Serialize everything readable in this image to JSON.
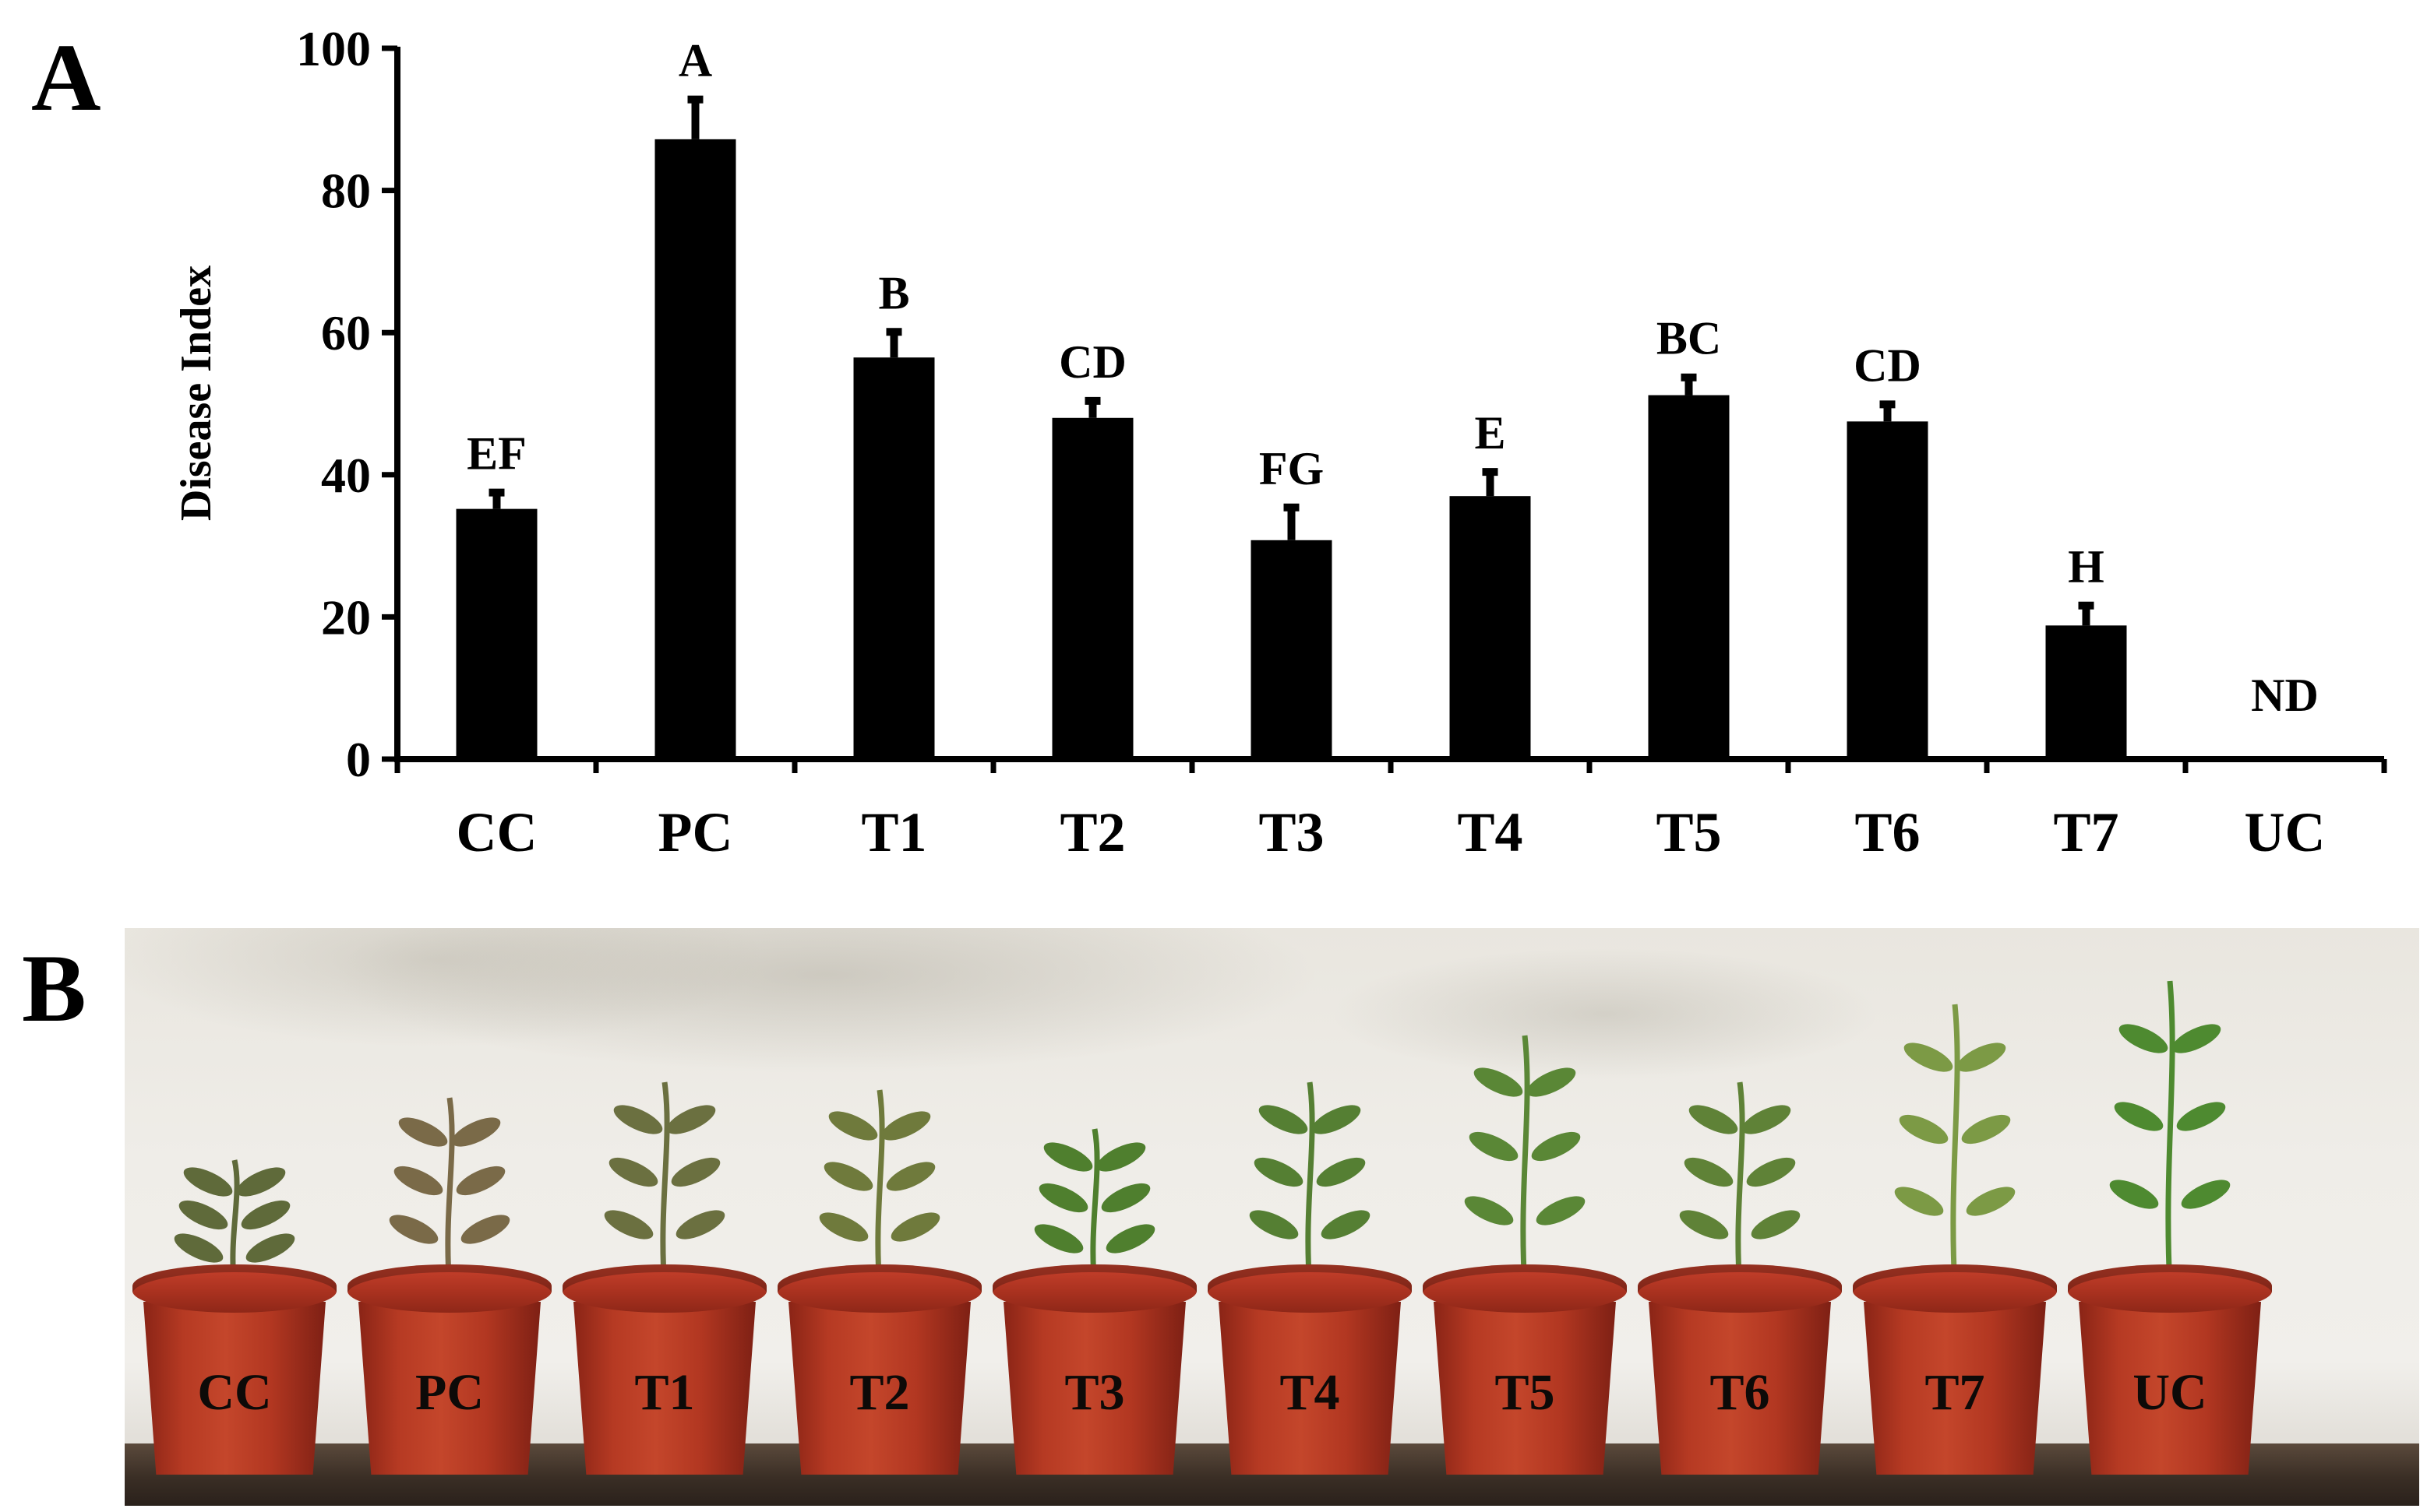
{
  "panels": {
    "a_label": "A",
    "b_label": "B"
  },
  "chart_data": {
    "type": "bar",
    "title": "",
    "xlabel": "",
    "ylabel": "Disease Index",
    "ylim": [
      0,
      100
    ],
    "yticks": [
      0,
      20,
      40,
      60,
      80,
      100
    ],
    "grid": false,
    "categories": [
      "CC",
      "PC",
      "T1",
      "T2",
      "T3",
      "T4",
      "T5",
      "T6",
      "T7",
      "UC"
    ],
    "series": [
      {
        "values": [
          35.2,
          87.2,
          56.5,
          48.0,
          30.8,
          37.0,
          51.2,
          47.5,
          18.8,
          0
        ],
        "errors": [
          2.3,
          5.6,
          3.6,
          2.4,
          4.6,
          3.4,
          2.5,
          2.4,
          2.8,
          0
        ]
      }
    ],
    "significance_labels": [
      "EF",
      "A",
      "B",
      "CD",
      "FG",
      "E",
      "BC",
      "CD",
      "H",
      "ND"
    ],
    "colors": {
      "bar": "#000000"
    }
  },
  "photo": {
    "pots": [
      {
        "label": "CC",
        "plant_color": "#5f6a3a"
      },
      {
        "label": "PC",
        "plant_color": "#7a6a48"
      },
      {
        "label": "T1",
        "plant_color": "#6b7040"
      },
      {
        "label": "T2",
        "plant_color": "#6f7a3c"
      },
      {
        "label": "T3",
        "plant_color": "#4f7f2e"
      },
      {
        "label": "T4",
        "plant_color": "#557f33"
      },
      {
        "label": "T5",
        "plant_color": "#5a8736"
      },
      {
        "label": "T6",
        "plant_color": "#5f8237"
      },
      {
        "label": "T7",
        "plant_color": "#7c9a45"
      },
      {
        "label": "UC",
        "plant_color": "#4e8a30"
      }
    ]
  }
}
